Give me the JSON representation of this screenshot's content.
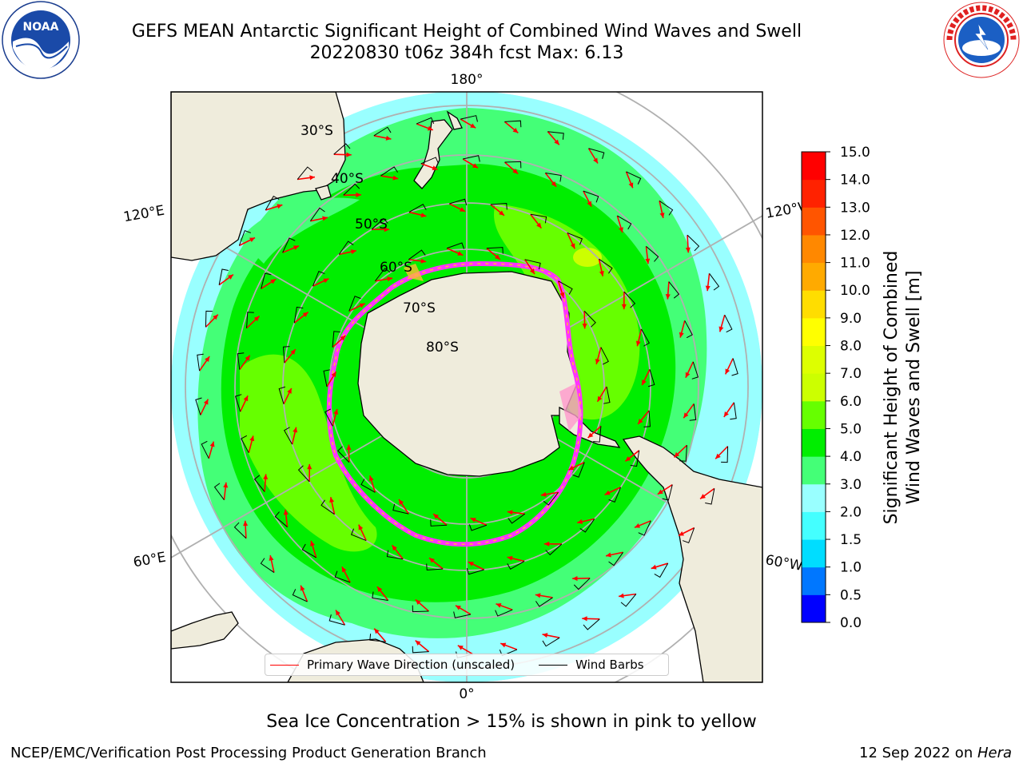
{
  "title": {
    "line1": "GEFS MEAN Antarctic Significant Height of Combined Wind Waves and Swell",
    "line2": "20220830 t06z 384h fcst   Max: 6.13"
  },
  "logos": {
    "noaa_text": "NOAA",
    "noaa_ring_text": "NATIONAL OCEANIC AND ATMOSPHERIC ADMINISTRATION · U.S. DEPARTMENT OF COMMERCE ·",
    "nws_ring_text": "NATIONAL WEATHER SERVICE"
  },
  "map": {
    "longitude_labels": {
      "top": "180°",
      "bottom": "0°",
      "upper_left": "120°E",
      "lower_left": "60°E",
      "upper_right": "120°W",
      "lower_right": "60°W"
    },
    "latitude_labels": [
      "30°S",
      "40°S",
      "50°S",
      "60°S",
      "70°S",
      "80°S"
    ],
    "colors": {
      "land": "#efecdc",
      "ice_edge": "#ff33ff",
      "ice_yellow": "#ffbb33",
      "arrow": "#ff0000",
      "barb": "#000000",
      "grid": "#b0b0b0"
    }
  },
  "legend": {
    "wave_direction": "Primary Wave Direction (unscaled)",
    "wind_barbs": "Wind Barbs"
  },
  "colorbar": {
    "label_line1": "Significant Height of Combined",
    "label_line2": "Wind Waves and Swell [m]",
    "ticks": [
      "0.0",
      "0.5",
      "1.0",
      "1.5",
      "2.0",
      "3.0",
      "4.0",
      "5.0",
      "6.0",
      "7.0",
      "8.0",
      "9.0",
      "10.0",
      "11.0",
      "12.0",
      "13.0",
      "14.0",
      "15.0"
    ],
    "colors": [
      "#0000ff",
      "#0077ff",
      "#00ddff",
      "#44ffff",
      "#99ffff",
      "#44ff77",
      "#00ee00",
      "#66ff00",
      "#ccff00",
      "#ddff00",
      "#ffff00",
      "#ffdd00",
      "#ffaa00",
      "#ff8800",
      "#ff5500",
      "#ff2200",
      "#ff0000"
    ]
  },
  "max_value": 6.13,
  "sea_ice_note": "Sea Ice Concentration > 15% is shown in pink to yellow",
  "footer": {
    "left": "NCEP/EMC/Verification Post Processing Product Generation Branch",
    "right_prefix": "12 Sep 2022 on ",
    "right_emphasis": "Hera"
  }
}
